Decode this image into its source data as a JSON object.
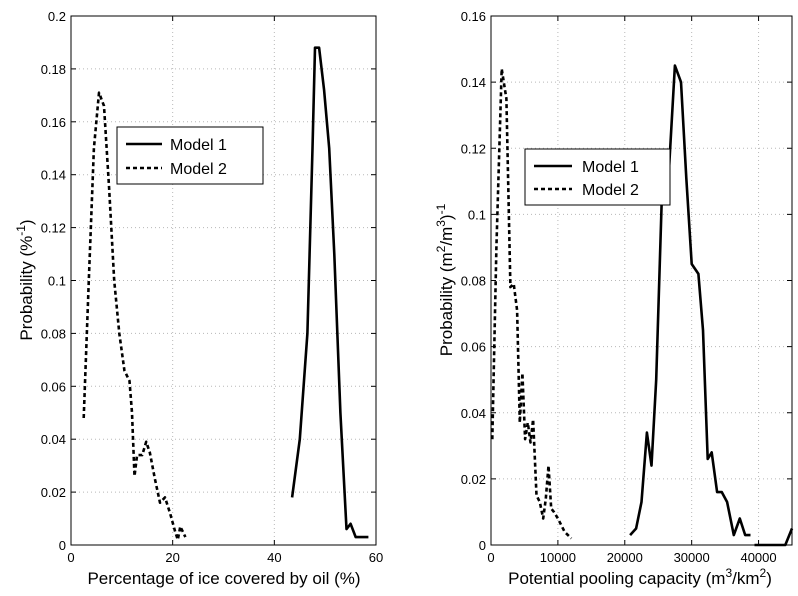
{
  "chart_data": [
    {
      "type": "line",
      "xlabel": "Percentage of ice covered by oil (%)",
      "ylabel": "Probability (%",
      "ylabel_sup": "-1",
      "ylabel_end": ")",
      "xlim": [
        0,
        60
      ],
      "ylim": [
        0,
        0.2
      ],
      "xticks": [
        "0",
        "20",
        "40",
        "60"
      ],
      "yticks": [
        "0",
        "0.02",
        "0.04",
        "0.06",
        "0.08",
        "0.1",
        "0.12",
        "0.14",
        "0.16",
        "0.18",
        "0.2"
      ],
      "grid": true,
      "legend_position": "upper-middle-left",
      "series": [
        {
          "name": "Model 1",
          "style": "solid",
          "x": [
            43.5,
            45.0,
            46.5,
            47.5,
            48.0,
            48.8,
            49.8,
            50.8,
            51.8,
            53.0,
            54.2,
            55.0,
            56.0,
            57.0,
            58.5
          ],
          "y": [
            0.018,
            0.04,
            0.08,
            0.15,
            0.188,
            0.188,
            0.172,
            0.15,
            0.11,
            0.05,
            0.006,
            0.008,
            0.003,
            0.003,
            0.003
          ]
        },
        {
          "name": "Model 2",
          "style": "dashed",
          "x": [
            2.5,
            3.5,
            4.5,
            5.5,
            6.5,
            7.5,
            8.5,
            9.5,
            10.5,
            11.5,
            12.0,
            12.5,
            13.0,
            14.0,
            14.8,
            15.5,
            16.5,
            17.5,
            18.5,
            19.5,
            20.5,
            21.0,
            21.5,
            22.5
          ],
          "y": [
            0.048,
            0.1,
            0.15,
            0.171,
            0.166,
            0.135,
            0.1,
            0.08,
            0.066,
            0.062,
            0.05,
            0.026,
            0.034,
            0.034,
            0.039,
            0.035,
            0.025,
            0.016,
            0.018,
            0.012,
            0.005,
            0.002,
            0.007,
            0.003
          ]
        }
      ]
    },
    {
      "type": "line",
      "xlabel": "Potential pooling capacity (m",
      "xlabel_sup1": "3",
      "xlabel_mid": "/km",
      "xlabel_sup2": "2",
      "xlabel_end": ")",
      "ylabel": "Probability (m",
      "ylabel_sup1": "2",
      "ylabel_mid": "/m",
      "ylabel_sup2": "3",
      "ylabel_end": ")",
      "ylabel_sup3": "-1",
      "xlim": [
        0,
        45000
      ],
      "ylim": [
        0,
        0.16
      ],
      "xticks": [
        "0",
        "10000",
        "20000",
        "30000",
        "40000"
      ],
      "yticks": [
        "0",
        "0.02",
        "0.04",
        "0.06",
        "0.08",
        "0.1",
        "0.12",
        "0.14",
        "0.16"
      ],
      "grid": true,
      "legend_position": "top-left",
      "series": [
        {
          "name": "Model 1",
          "style": "solid",
          "x": [
            20800,
            21700,
            22500,
            23300,
            24000,
            24700,
            25500,
            26500,
            27500,
            28400,
            29200,
            30000,
            31000,
            31700,
            32400,
            33000,
            33800,
            34500,
            35300,
            36300,
            37200,
            38000,
            38800,
            39400,
            40300,
            41000,
            42000,
            43000,
            44000,
            45000
          ],
          "y": [
            0.003,
            0.005,
            0.013,
            0.034,
            0.024,
            0.05,
            0.103,
            0.11,
            0.145,
            0.14,
            0.111,
            0.085,
            0.082,
            0.065,
            0.026,
            0.028,
            0.016,
            0.016,
            0.013,
            0.003,
            0.008,
            0.003,
            0.003,
            0.0,
            0.0,
            0.0,
            0.0,
            0.0,
            0.0,
            0.005
          ],
          "gap_after_index": 22
        },
        {
          "name": "Model 2",
          "style": "dashed",
          "x": [
            200,
            800,
            1600,
            2300,
            2900,
            3400,
            3900,
            4300,
            4700,
            5100,
            5500,
            5900,
            6300,
            6800,
            7300,
            7800,
            8200,
            8600,
            9000,
            9400,
            10000,
            11000,
            12000
          ],
          "y": [
            0.032,
            0.09,
            0.144,
            0.135,
            0.078,
            0.079,
            0.071,
            0.037,
            0.052,
            0.032,
            0.037,
            0.031,
            0.038,
            0.015,
            0.013,
            0.008,
            0.014,
            0.024,
            0.011,
            0.01,
            0.008,
            0.004,
            0.002
          ]
        }
      ]
    }
  ]
}
